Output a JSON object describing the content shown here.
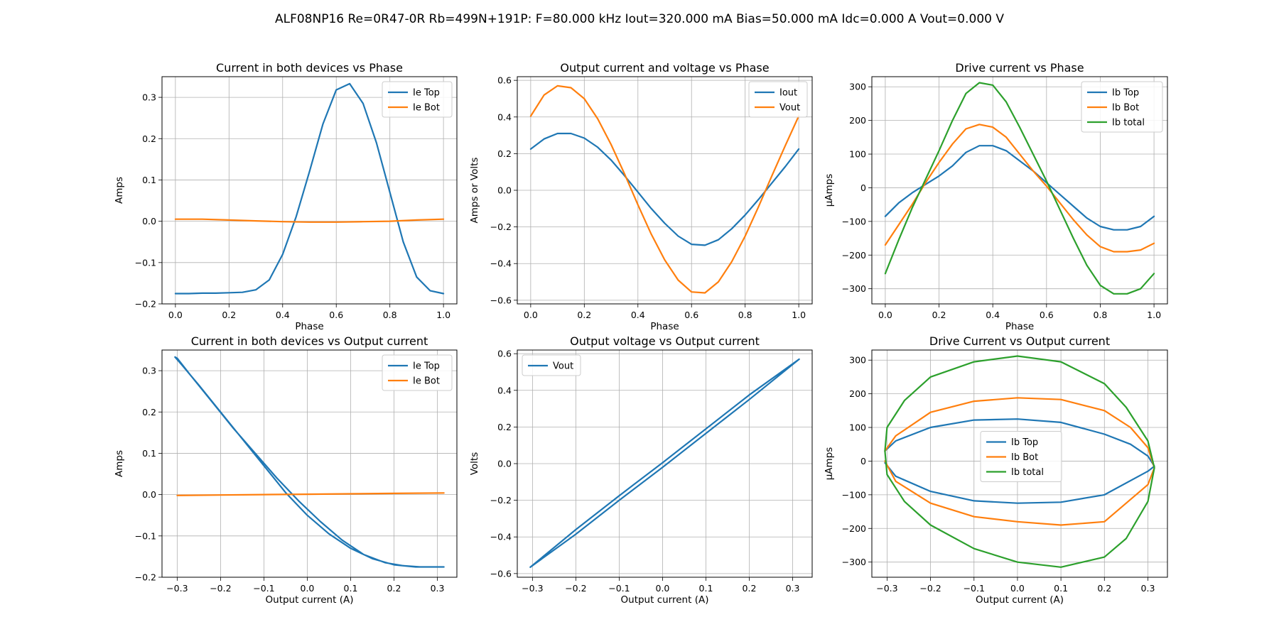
{
  "title": "ALF08NP16 Re=0R47-0R Rb=499N+191P: F=80.000 kHz Iout=320.000 mA Bias=50.000 mA Idc=0.000 A Vout=0.000 V",
  "colors": {
    "blue": "#1f77b4",
    "orange": "#ff7f0e",
    "green": "#2ca02c"
  },
  "chart_data": [
    {
      "type": "line",
      "title": "Current in both devices vs Phase",
      "xlabel": "Phase",
      "ylabel": "Amps",
      "xlim": [
        -0.05,
        1.05
      ],
      "ylim": [
        -0.2,
        0.35
      ],
      "xticks": [
        0.0,
        0.2,
        0.4,
        0.6,
        0.8,
        1.0
      ],
      "yticks": [
        -0.2,
        -0.1,
        0.0,
        0.1,
        0.2,
        0.3
      ],
      "grid": true,
      "legend": "top-right",
      "series": [
        {
          "name": "Ie Top",
          "color": "#1f77b4",
          "x": [
            0.0,
            0.05,
            0.1,
            0.15,
            0.2,
            0.25,
            0.3,
            0.35,
            0.4,
            0.45,
            0.5,
            0.55,
            0.6,
            0.65,
            0.7,
            0.75,
            0.8,
            0.85,
            0.9,
            0.95,
            1.0
          ],
          "y": [
            -0.175,
            -0.175,
            -0.174,
            -0.174,
            -0.173,
            -0.172,
            -0.166,
            -0.142,
            -0.08,
            0.01,
            0.12,
            0.235,
            0.318,
            0.333,
            0.285,
            0.19,
            0.07,
            -0.05,
            -0.135,
            -0.168,
            -0.175
          ]
        },
        {
          "name": "Ie Bot",
          "color": "#ff7f0e",
          "x": [
            0.0,
            0.1,
            0.2,
            0.3,
            0.4,
            0.5,
            0.6,
            0.7,
            0.8,
            0.9,
            1.0
          ],
          "y": [
            0.005,
            0.005,
            0.003,
            0.001,
            -0.001,
            -0.002,
            -0.002,
            -0.001,
            0.0,
            0.003,
            0.005
          ]
        }
      ]
    },
    {
      "type": "line",
      "title": "Output current and voltage vs Phase",
      "xlabel": "Phase",
      "ylabel": "Amps or Volts",
      "xlim": [
        -0.05,
        1.05
      ],
      "ylim": [
        -0.62,
        0.62
      ],
      "xticks": [
        0.0,
        0.2,
        0.4,
        0.6,
        0.8,
        1.0
      ],
      "yticks": [
        -0.6,
        -0.4,
        -0.2,
        0.0,
        0.2,
        0.4,
        0.6
      ],
      "grid": true,
      "legend": "top-right",
      "series": [
        {
          "name": "Iout",
          "color": "#1f77b4",
          "x": [
            0.0,
            0.05,
            0.1,
            0.15,
            0.2,
            0.25,
            0.3,
            0.35,
            0.4,
            0.45,
            0.5,
            0.55,
            0.6,
            0.65,
            0.7,
            0.75,
            0.8,
            0.85,
            0.9,
            0.95,
            1.0
          ],
          "y": [
            0.225,
            0.28,
            0.31,
            0.31,
            0.285,
            0.235,
            0.165,
            0.08,
            -0.01,
            -0.1,
            -0.18,
            -0.25,
            -0.295,
            -0.3,
            -0.27,
            -0.21,
            -0.135,
            -0.05,
            0.04,
            0.13,
            0.225
          ]
        },
        {
          "name": "Vout",
          "color": "#ff7f0e",
          "x": [
            0.0,
            0.05,
            0.1,
            0.15,
            0.2,
            0.25,
            0.3,
            0.35,
            0.4,
            0.45,
            0.5,
            0.55,
            0.6,
            0.65,
            0.7,
            0.75,
            0.8,
            0.85,
            0.9,
            0.95,
            1.0
          ],
          "y": [
            0.405,
            0.52,
            0.57,
            0.56,
            0.5,
            0.39,
            0.25,
            0.09,
            -0.08,
            -0.24,
            -0.38,
            -0.49,
            -0.555,
            -0.56,
            -0.5,
            -0.39,
            -0.25,
            -0.09,
            0.08,
            0.245,
            0.405
          ]
        }
      ]
    },
    {
      "type": "line",
      "title": "Drive current vs Phase",
      "xlabel": "Phase",
      "ylabel": "µAmps",
      "xlim": [
        -0.05,
        1.05
      ],
      "ylim": [
        -345,
        330
      ],
      "xticks": [
        0.0,
        0.2,
        0.4,
        0.6,
        0.8,
        1.0
      ],
      "yticks": [
        -300,
        -200,
        -100,
        0,
        100,
        200,
        300
      ],
      "grid": true,
      "legend": "top-right",
      "series": [
        {
          "name": "Ib Top",
          "color": "#1f77b4",
          "x": [
            0.0,
            0.05,
            0.1,
            0.15,
            0.2,
            0.25,
            0.3,
            0.35,
            0.4,
            0.45,
            0.5,
            0.55,
            0.6,
            0.65,
            0.7,
            0.75,
            0.8,
            0.85,
            0.9,
            0.95,
            1.0
          ],
          "y": [
            -85,
            -45,
            -15,
            10,
            35,
            65,
            105,
            125,
            125,
            110,
            80,
            50,
            15,
            -20,
            -55,
            -90,
            -115,
            -125,
            -125,
            -115,
            -85
          ]
        },
        {
          "name": "Ib Bot",
          "color": "#ff7f0e",
          "x": [
            0.0,
            0.05,
            0.1,
            0.15,
            0.2,
            0.25,
            0.3,
            0.35,
            0.4,
            0.45,
            0.5,
            0.55,
            0.6,
            0.65,
            0.7,
            0.75,
            0.8,
            0.85,
            0.9,
            0.95,
            1.0
          ],
          "y": [
            -170,
            -110,
            -50,
            15,
            75,
            130,
            175,
            188,
            180,
            150,
            100,
            50,
            5,
            -45,
            -95,
            -140,
            -175,
            -190,
            -190,
            -185,
            -165
          ]
        },
        {
          "name": "Ib total",
          "color": "#2ca02c",
          "x": [
            0.0,
            0.05,
            0.1,
            0.15,
            0.2,
            0.25,
            0.3,
            0.35,
            0.4,
            0.45,
            0.5,
            0.55,
            0.6,
            0.65,
            0.7,
            0.75,
            0.8,
            0.85,
            0.9,
            0.95,
            1.0
          ],
          "y": [
            -255,
            -155,
            -60,
            25,
            110,
            200,
            280,
            312,
            305,
            255,
            180,
            100,
            20,
            -65,
            -150,
            -230,
            -290,
            -315,
            -315,
            -300,
            -255
          ]
        }
      ]
    },
    {
      "type": "line",
      "title": "Current in both devices vs Output current",
      "xlabel": "Output current (A)",
      "ylabel": "Amps",
      "xlim": [
        -0.335,
        0.345
      ],
      "ylim": [
        -0.2,
        0.35
      ],
      "xticks": [
        -0.3,
        -0.2,
        -0.1,
        0.0,
        0.1,
        0.2,
        0.3
      ],
      "yticks": [
        -0.2,
        -0.1,
        0.0,
        0.1,
        0.2,
        0.3
      ],
      "grid": true,
      "legend": "top-right",
      "series": [
        {
          "name": "Ie Top",
          "color": "#1f77b4",
          "x": [
            -0.305,
            -0.3,
            -0.27,
            -0.22,
            -0.17,
            -0.12,
            -0.07,
            -0.02,
            0.03,
            0.08,
            0.13,
            0.18,
            0.22,
            0.26,
            0.3,
            0.315,
            0.3,
            0.25,
            0.2,
            0.15,
            0.1,
            0.05,
            0.0,
            -0.05,
            -0.1,
            -0.15,
            -0.2,
            -0.25,
            -0.29,
            -0.305
          ],
          "y": [
            0.333,
            0.33,
            0.29,
            0.225,
            0.16,
            0.1,
            0.04,
            -0.015,
            -0.065,
            -0.11,
            -0.145,
            -0.165,
            -0.172,
            -0.175,
            -0.175,
            -0.175,
            -0.175,
            -0.175,
            -0.17,
            -0.155,
            -0.13,
            -0.095,
            -0.05,
            0.005,
            0.07,
            0.135,
            0.2,
            0.265,
            0.315,
            0.333
          ]
        },
        {
          "name": "Ie Bot",
          "color": "#ff7f0e",
          "x": [
            -0.3,
            -0.2,
            -0.1,
            0.0,
            0.1,
            0.2,
            0.315
          ],
          "y": [
            -0.002,
            -0.001,
            0.0,
            0.001,
            0.002,
            0.003,
            0.004
          ]
        }
      ]
    },
    {
      "type": "line",
      "title": "Output voltage vs Output current",
      "xlabel": "Output current (A)",
      "ylabel": "Volts",
      "xlim": [
        -0.335,
        0.345
      ],
      "ylim": [
        -0.62,
        0.62
      ],
      "xticks": [
        -0.3,
        -0.2,
        -0.1,
        0.0,
        0.1,
        0.2,
        0.3
      ],
      "yticks": [
        -0.6,
        -0.4,
        -0.2,
        0.0,
        0.2,
        0.4,
        0.6
      ],
      "grid": true,
      "legend": "top-left",
      "series": [
        {
          "name": "Vout",
          "color": "#1f77b4",
          "x": [
            -0.305,
            -0.2,
            -0.1,
            0.0,
            0.1,
            0.2,
            0.315,
            0.2,
            0.1,
            0.0,
            -0.1,
            -0.2,
            -0.305
          ],
          "y": [
            -0.565,
            -0.36,
            -0.175,
            0.005,
            0.19,
            0.375,
            0.57,
            0.35,
            0.165,
            -0.02,
            -0.2,
            -0.385,
            -0.565
          ]
        }
      ]
    },
    {
      "type": "line",
      "title": "Drive Current vs Output current",
      "xlabel": "Output current (A)",
      "ylabel": "µAmps",
      "xlim": [
        -0.335,
        0.345
      ],
      "ylim": [
        -345,
        330
      ],
      "xticks": [
        -0.3,
        -0.2,
        -0.1,
        0.0,
        0.1,
        0.2,
        0.3
      ],
      "yticks": [
        -300,
        -200,
        -100,
        0,
        100,
        200,
        300
      ],
      "grid": true,
      "legend": "center",
      "series": [
        {
          "name": "Ib Top",
          "color": "#1f77b4",
          "x": [
            -0.305,
            -0.28,
            -0.2,
            -0.1,
            0.0,
            0.1,
            0.2,
            0.26,
            0.3,
            0.315,
            0.3,
            0.2,
            0.1,
            0.0,
            -0.1,
            -0.2,
            -0.28,
            -0.305
          ],
          "y": [
            30,
            60,
            100,
            122,
            125,
            115,
            80,
            50,
            15,
            -15,
            -30,
            -100,
            -122,
            -125,
            -118,
            -90,
            -45,
            -5
          ]
        },
        {
          "name": "Ib Bot",
          "color": "#ff7f0e",
          "x": [
            -0.305,
            -0.28,
            -0.2,
            -0.1,
            0.0,
            0.1,
            0.2,
            0.26,
            0.3,
            0.315,
            0.3,
            0.2,
            0.1,
            0.0,
            -0.1,
            -0.2,
            -0.28,
            -0.305
          ],
          "y": [
            30,
            75,
            145,
            178,
            188,
            183,
            150,
            100,
            40,
            -20,
            -70,
            -180,
            -190,
            -180,
            -165,
            -125,
            -60,
            0
          ]
        },
        {
          "name": "Ib total",
          "color": "#2ca02c",
          "x": [
            -0.305,
            -0.3,
            -0.26,
            -0.2,
            -0.1,
            0.0,
            0.1,
            0.2,
            0.25,
            0.3,
            0.315,
            0.3,
            0.25,
            0.2,
            0.1,
            0.0,
            -0.1,
            -0.2,
            -0.26,
            -0.3,
            -0.305
          ],
          "y": [
            30,
            100,
            180,
            250,
            295,
            312,
            295,
            230,
            160,
            60,
            -20,
            -120,
            -230,
            -285,
            -315,
            -300,
            -260,
            -190,
            -120,
            -40,
            30
          ]
        }
      ]
    }
  ]
}
